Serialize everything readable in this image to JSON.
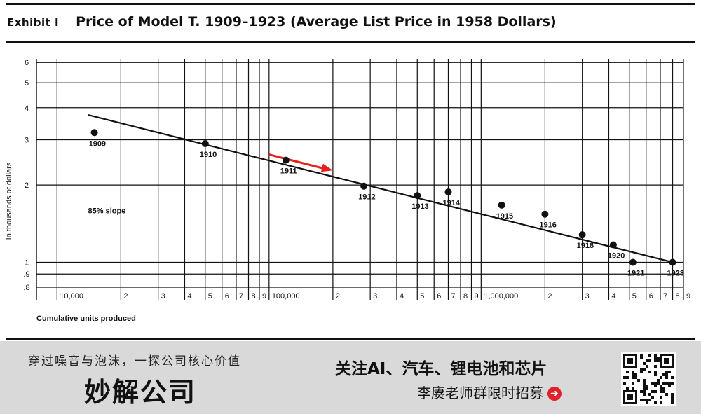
{
  "exhibit_label": "Exhibit I",
  "title": "Price of Model T. 1909–1923 (Average List Price in 1958 Dollars)",
  "chart_data": {
    "type": "scatter",
    "xscale": "log",
    "yscale": "log",
    "xlim": [
      8000,
      9000000
    ],
    "ylim": [
      0.8,
      6.2
    ],
    "xlabel": "Cumulative units produced",
    "ylabel": "In thousands of dollars",
    "x_tick_labels": [
      {
        "value": 10000,
        "label": "10,000"
      },
      {
        "value": 20000,
        "label": "2"
      },
      {
        "value": 30000,
        "label": "3"
      },
      {
        "value": 40000,
        "label": "4"
      },
      {
        "value": 50000,
        "label": "5"
      },
      {
        "value": 60000,
        "label": "6"
      },
      {
        "value": 70000,
        "label": "7"
      },
      {
        "value": 80000,
        "label": "8"
      },
      {
        "value": 90000,
        "label": "9"
      },
      {
        "value": 100000,
        "label": "100,000"
      },
      {
        "value": 200000,
        "label": "2"
      },
      {
        "value": 300000,
        "label": "3"
      },
      {
        "value": 400000,
        "label": "4"
      },
      {
        "value": 500000,
        "label": "5"
      },
      {
        "value": 600000,
        "label": "6"
      },
      {
        "value": 700000,
        "label": "7"
      },
      {
        "value": 800000,
        "label": "8"
      },
      {
        "value": 900000,
        "label": "9"
      },
      {
        "value": 1000000,
        "label": "1,000,000"
      },
      {
        "value": 2000000,
        "label": "2"
      },
      {
        "value": 3000000,
        "label": "3"
      },
      {
        "value": 4000000,
        "label": "4"
      },
      {
        "value": 5000000,
        "label": "5"
      },
      {
        "value": 6000000,
        "label": "6"
      },
      {
        "value": 7000000,
        "label": "7"
      },
      {
        "value": 8000000,
        "label": "8"
      },
      {
        "value": 9000000,
        "label": "9"
      }
    ],
    "y_tick_labels": [
      {
        "value": 0.8,
        "label": ".8"
      },
      {
        "value": 0.9,
        "label": ".9"
      },
      {
        "value": 1,
        "label": "1"
      },
      {
        "value": 2,
        "label": "2"
      },
      {
        "value": 3,
        "label": "3"
      },
      {
        "value": 4,
        "label": "4"
      },
      {
        "value": 5,
        "label": "5"
      },
      {
        "value": 6,
        "label": "6"
      }
    ],
    "points": [
      {
        "label": "1909",
        "x": 15000,
        "y": 3.2
      },
      {
        "label": "1910",
        "x": 50000,
        "y": 2.9
      },
      {
        "label": "1911",
        "x": 120000,
        "y": 2.5
      },
      {
        "label": "1912",
        "x": 280000,
        "y": 1.98
      },
      {
        "label": "1913",
        "x": 500000,
        "y": 1.82
      },
      {
        "label": "1914",
        "x": 700000,
        "y": 1.88
      },
      {
        "label": "1915",
        "x": 1250000,
        "y": 1.67
      },
      {
        "label": "1916",
        "x": 2000000,
        "y": 1.54
      },
      {
        "label": "1918",
        "x": 3000000,
        "y": 1.28
      },
      {
        "label": "1920",
        "x": 4200000,
        "y": 1.17
      },
      {
        "label": "1921",
        "x": 5200000,
        "y": 1.0
      },
      {
        "label": "1923",
        "x": 8000000,
        "y": 1.0
      }
    ],
    "trend_line": {
      "x": [
        14000,
        8000000
      ],
      "y": [
        3.75,
        1.0
      ]
    },
    "annotations": [
      {
        "text": "85% slope",
        "x": 14000,
        "y": 1.55
      }
    ],
    "highlight_arrow": {
      "x": [
        100000,
        200000
      ],
      "y": [
        2.63,
        2.28
      ],
      "color": "#e8201c"
    },
    "grid": true
  },
  "banner": {
    "left_line1": "穿过噪音与泡沫，一探公司核心价值",
    "left_line2": "妙解公司",
    "right_line1": "关注AI、汽车、锂电池和芯片",
    "right_line2": "李赓老师群限时招募",
    "arrow_icon": "arrow-right-circle-icon",
    "accent": "#e0202a"
  }
}
